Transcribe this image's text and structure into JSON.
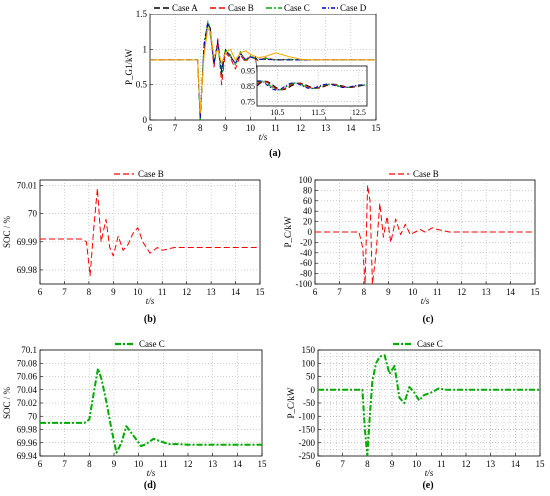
{
  "figure": {
    "panels": [
      {
        "id": "a",
        "caption": "(a)",
        "xlabel": "t/s",
        "ylabel": "P_G1/kW",
        "xlim": [
          6,
          15
        ],
        "ylim": [
          0,
          1.5
        ],
        "xticks": [
          "6",
          "7",
          "8",
          "9",
          "10",
          "11",
          "12",
          "13",
          "14",
          "15"
        ],
        "yticks": [
          "0",
          "0.5",
          "1",
          "1.5"
        ],
        "legend": [
          "Case A",
          "Case B",
          "Case C",
          "Case D"
        ],
        "inset": {
          "xlim": [
            10,
            12.7
          ],
          "ylim": [
            0.72,
            0.98
          ],
          "xticks": [
            "10.5",
            "11.5",
            "12.5"
          ],
          "yticks": [
            "0.75",
            "0.85",
            "0.95"
          ]
        }
      },
      {
        "id": "b",
        "caption": "(b)",
        "xlabel": "t/s",
        "ylabel": "SOC / %",
        "xlim": [
          6,
          15
        ],
        "ylim": [
          69.975,
          70.012
        ],
        "xticks": [
          "6",
          "7",
          "8",
          "9",
          "10",
          "11",
          "12",
          "13",
          "14",
          "15"
        ],
        "yticks": [
          "69.98",
          "69.99",
          "70",
          "70.01"
        ],
        "legend": [
          "Case B"
        ]
      },
      {
        "id": "c",
        "caption": "(c)",
        "xlabel": "t/s",
        "ylabel": "P_C/kW",
        "xlim": [
          6,
          15
        ],
        "ylim": [
          -100,
          100
        ],
        "xticks": [
          "6",
          "7",
          "8",
          "9",
          "10",
          "11",
          "12",
          "13",
          "14",
          "15"
        ],
        "yticks": [
          "-100",
          "-80",
          "-60",
          "-40",
          "-20",
          "0",
          "20",
          "40",
          "60",
          "80",
          "100"
        ],
        "legend": [
          "Case B"
        ]
      },
      {
        "id": "d",
        "caption": "(d)",
        "xlabel": "t/s",
        "ylabel": "SOC / %",
        "xlim": [
          6,
          15
        ],
        "ylim": [
          69.94,
          70.1
        ],
        "xticks": [
          "6",
          "7",
          "8",
          "9",
          "10",
          "11",
          "12",
          "13",
          "14",
          "15"
        ],
        "yticks": [
          "69.94",
          "69.96",
          "69.98",
          "70",
          "70.02",
          "70.04",
          "70.06",
          "70.08",
          "70.1"
        ],
        "legend": [
          "Case C"
        ]
      },
      {
        "id": "e",
        "caption": "(e)",
        "xlabel": "t/s",
        "ylabel": "P_C/kW",
        "xlim": [
          6,
          15
        ],
        "ylim": [
          -250,
          150
        ],
        "xticks": [
          "6",
          "7",
          "8",
          "9",
          "10",
          "11",
          "12",
          "13",
          "14",
          "15"
        ],
        "yticks": [
          "-250",
          "-200",
          "-150",
          "-100",
          "-50",
          "0",
          "50",
          "100",
          "150"
        ],
        "legend": [
          "Case C"
        ]
      }
    ]
  },
  "colors": {
    "Case A": "#000000",
    "Case B": "#ff0000",
    "Case C": "#00aa00",
    "Case D": "#0000cc",
    "extra": "#ffaa00",
    "grid": "#888888"
  },
  "chart_data": [
    {
      "type": "line",
      "panel": "a",
      "x": [
        6,
        7.9,
        8.0,
        8.15,
        8.3,
        8.4,
        8.55,
        8.7,
        8.85,
        9.0,
        9.2,
        9.4,
        9.6,
        9.8,
        10.0,
        10.3,
        10.6,
        11.0,
        11.5,
        12.0,
        12.5,
        13,
        14,
        15
      ],
      "series": [
        {
          "name": "Case A",
          "values": [
            0.85,
            0.85,
            0.0,
            1.0,
            1.35,
            1.3,
            0.8,
            1.1,
            0.7,
            1.0,
            0.9,
            0.8,
            0.95,
            0.85,
            0.9,
            0.86,
            0.86,
            0.85,
            0.85,
            0.85,
            0.85,
            0.85,
            0.85,
            0.85
          ]
        },
        {
          "name": "Case B",
          "values": [
            0.85,
            0.85,
            0.05,
            0.95,
            1.32,
            1.25,
            0.75,
            1.15,
            0.5,
            0.95,
            0.88,
            0.72,
            0.92,
            0.82,
            0.9,
            0.84,
            0.88,
            0.85,
            0.86,
            0.85,
            0.85,
            0.85,
            0.85,
            0.85
          ]
        },
        {
          "name": "Case C",
          "values": [
            0.85,
            0.85,
            0.0,
            1.1,
            1.38,
            1.2,
            0.85,
            1.05,
            0.6,
            1.0,
            0.92,
            0.78,
            0.97,
            0.84,
            0.91,
            0.85,
            0.87,
            0.85,
            0.86,
            0.85,
            0.85,
            0.85,
            0.85,
            0.85
          ]
        },
        {
          "name": "Case D",
          "values": [
            0.85,
            0.85,
            0.02,
            1.05,
            1.4,
            1.28,
            0.78,
            1.12,
            0.65,
            0.98,
            0.9,
            0.8,
            0.93,
            0.86,
            0.89,
            0.86,
            0.86,
            0.85,
            0.85,
            0.85,
            0.85,
            0.85,
            0.85,
            0.85
          ]
        },
        {
          "values": [
            0.85,
            0.85,
            0.1,
            0.9,
            1.3,
            1.25,
            0.9,
            1.0,
            0.8,
            0.95,
            1.0,
            0.85,
            0.95,
            0.98,
            0.93,
            0.88,
            0.9,
            0.95,
            0.9,
            0.86,
            0.85,
            0.85,
            0.85,
            0.85
          ]
        }
      ]
    },
    {
      "type": "line",
      "panel": "b",
      "x": [
        6,
        7.7,
        7.9,
        8.05,
        8.2,
        8.35,
        8.5,
        8.7,
        8.85,
        9.0,
        9.2,
        9.4,
        9.6,
        9.8,
        10.0,
        10.2,
        10.5,
        10.8,
        11.0,
        11.5,
        12,
        13,
        14,
        15
      ],
      "series": [
        {
          "name": "Case B",
          "values": [
            69.991,
            69.991,
            69.99,
            69.978,
            69.995,
            70.009,
            69.99,
            69.998,
            69.988,
            69.985,
            69.992,
            69.987,
            69.989,
            69.993,
            69.995,
            69.99,
            69.986,
            69.988,
            69.987,
            69.988,
            69.988,
            69.988,
            69.988,
            69.988
          ]
        }
      ]
    },
    {
      "type": "line",
      "panel": "c",
      "x": [
        6,
        7.8,
        7.95,
        8.05,
        8.15,
        8.25,
        8.35,
        8.5,
        8.65,
        8.8,
        8.95,
        9.1,
        9.3,
        9.5,
        9.7,
        9.9,
        10.1,
        10.3,
        10.5,
        10.8,
        11.0,
        11.5,
        12,
        13,
        14,
        15
      ],
      "series": [
        {
          "name": "Case B",
          "values": [
            0,
            0,
            -30,
            -100,
            90,
            60,
            -100,
            -40,
            55,
            -10,
            30,
            -20,
            25,
            -5,
            15,
            -5,
            0,
            5,
            0,
            8,
            5,
            0,
            0,
            0,
            0,
            0
          ]
        }
      ]
    },
    {
      "type": "line",
      "panel": "d",
      "x": [
        6,
        7.8,
        8.0,
        8.2,
        8.35,
        8.5,
        8.7,
        8.9,
        9.1,
        9.3,
        9.5,
        9.7,
        9.9,
        10.1,
        10.3,
        10.6,
        10.9,
        11.2,
        11.6,
        12,
        13,
        14,
        15
      ],
      "series": [
        {
          "name": "Case C",
          "values": [
            69.99,
            69.99,
            69.995,
            70.04,
            70.072,
            70.055,
            70.02,
            69.98,
            69.945,
            69.96,
            69.985,
            69.975,
            69.965,
            69.955,
            69.958,
            69.966,
            69.962,
            69.958,
            69.958,
            69.957,
            69.957,
            69.957,
            69.957
          ]
        }
      ]
    },
    {
      "type": "line",
      "panel": "e",
      "x": [
        6,
        7.8,
        7.9,
        8.0,
        8.1,
        8.2,
        8.35,
        8.5,
        8.7,
        8.9,
        9.1,
        9.3,
        9.5,
        9.7,
        9.9,
        10.1,
        10.3,
        10.6,
        10.9,
        11.2,
        11.6,
        12,
        13,
        14,
        15
      ],
      "series": [
        {
          "name": "Case C",
          "values": [
            0,
            0,
            -150,
            -250,
            -100,
            30,
            100,
            125,
            130,
            60,
            90,
            -30,
            -50,
            10,
            -10,
            -40,
            -20,
            -10,
            5,
            0,
            0,
            0,
            0,
            0,
            0
          ]
        }
      ]
    }
  ]
}
